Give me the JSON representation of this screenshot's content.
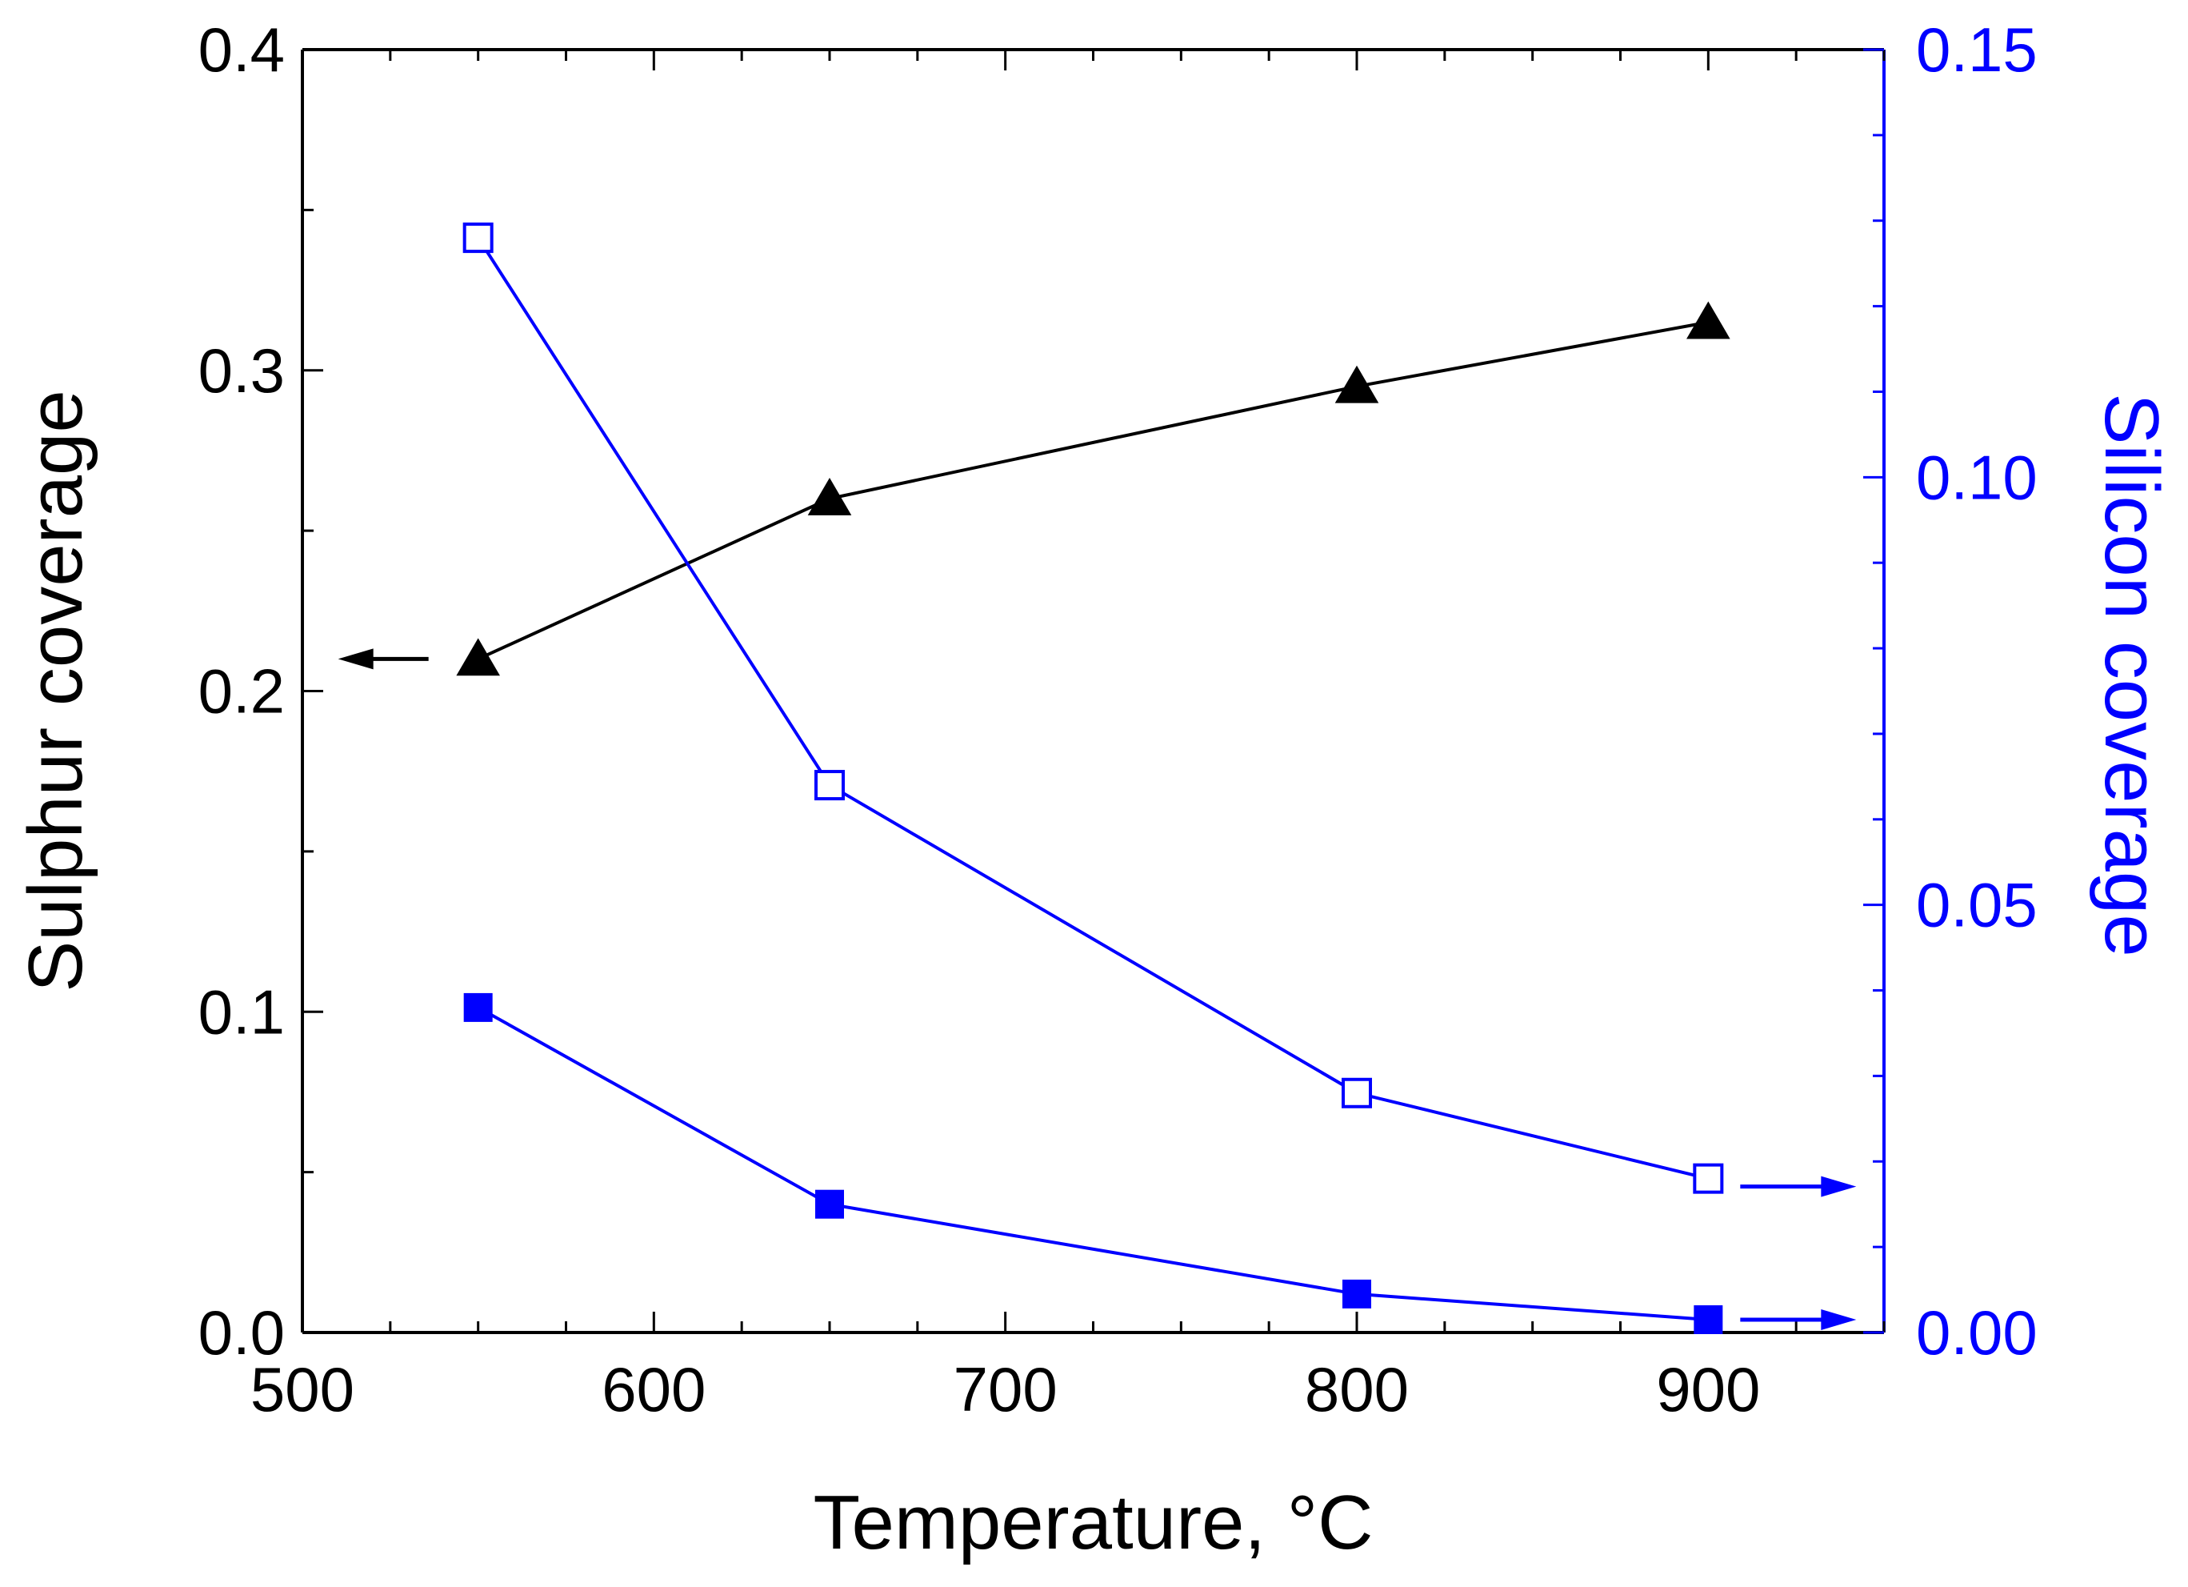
{
  "chart_data": {
    "type": "line",
    "title": "",
    "xlabel": "Temperature, °C",
    "ylabel_left": "Sulphur coverage",
    "ylabel_right": "Silicon coverage",
    "xlim": [
      500,
      950
    ],
    "ylim_left": [
      0,
      0.4
    ],
    "ylim_right": [
      0,
      0.15
    ],
    "x_ticks": [
      500,
      600,
      700,
      800,
      900
    ],
    "x_tick_labels": [
      "500",
      "600",
      "700",
      "800",
      "900"
    ],
    "y_left_ticks": [
      0,
      0.1,
      0.2,
      0.3,
      0.4
    ],
    "y_left_tick_labels": [
      "0.0",
      "0.1",
      "0.2",
      "0.3",
      "0.4"
    ],
    "y_right_ticks": [
      0,
      0.05,
      0.1,
      0.15
    ],
    "y_right_tick_labels": [
      "0.00",
      "0.05",
      "0.10",
      "0.15"
    ],
    "grid": false,
    "series": [
      {
        "name": "Sulphur coverage",
        "axis": "left",
        "marker": "triangle-filled",
        "color": "#000000",
        "x": [
          550,
          650,
          800,
          900
        ],
        "y": [
          0.21,
          0.26,
          0.295,
          0.315
        ]
      },
      {
        "name": "Silicon coverage (open squares)",
        "axis": "right",
        "marker": "square-open",
        "color": "#0000ff",
        "x": [
          550,
          650,
          800,
          900
        ],
        "y": [
          0.128,
          0.064,
          0.028,
          0.018
        ]
      },
      {
        "name": "Silicon coverage (filled squares)",
        "axis": "right",
        "marker": "square-filled",
        "color": "#0000ff",
        "x": [
          550,
          650,
          800,
          900
        ],
        "y": [
          0.038,
          0.015,
          0.0045,
          0.0015
        ]
      }
    ],
    "annotations": [
      {
        "type": "arrow",
        "points_to": "left-axis",
        "series": "Sulphur coverage",
        "color": "#000000"
      },
      {
        "type": "arrow",
        "points_to": "right-axis",
        "series": "Silicon coverage (open squares)",
        "color": "#0000ff"
      },
      {
        "type": "arrow",
        "points_to": "right-axis",
        "series": "Silicon coverage (filled squares)",
        "color": "#0000ff"
      }
    ],
    "colors": {
      "left_axis": "#000000",
      "right_axis": "#0000ff"
    }
  }
}
